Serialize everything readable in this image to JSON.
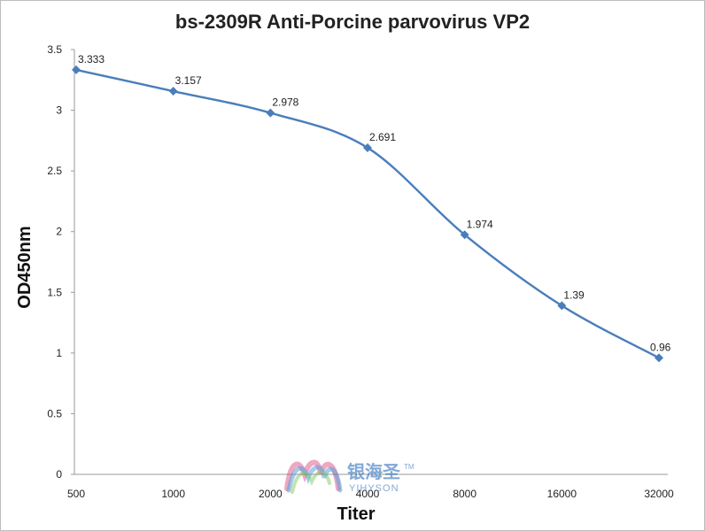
{
  "chart_data": {
    "type": "line",
    "title": "bs-2309R Anti-Porcine parvovirus VP2",
    "xlabel": "Titer",
    "ylabel": "OD450nm",
    "categories": [
      "500",
      "1000",
      "2000",
      "4000",
      "8000",
      "16000",
      "32000"
    ],
    "series": [
      {
        "values": [
          3.333,
          3.157,
          2.978,
          2.691,
          1.974,
          1.39,
          0.96
        ],
        "data_labels": [
          "3.333",
          "3.157",
          "2.978",
          "2.691",
          "1.974",
          "1.39",
          "0.96"
        ],
        "color": "#4a7ebb"
      }
    ],
    "ylim": [
      0,
      3.5
    ],
    "yticks": [
      "0",
      "0.5",
      "1",
      "1.5",
      "2",
      "2.5",
      "3",
      "3.5"
    ],
    "grid": false,
    "legend": "none",
    "smooth": true
  },
  "watermark": {
    "brand": "银海圣",
    "trademark": "TM",
    "sub": "YIHYSON"
  }
}
